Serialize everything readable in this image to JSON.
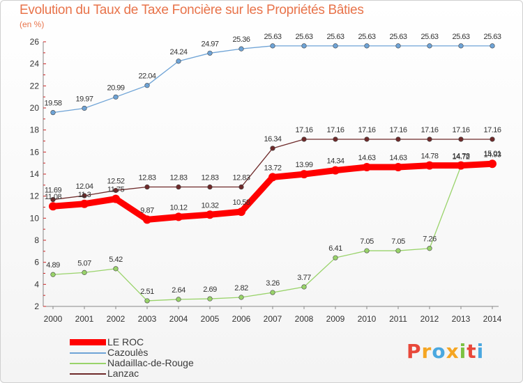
{
  "title": "Evolution du Taux de Taxe Foncière sur les Propriétés Bâties",
  "subtitle": "(en %)",
  "logo": "Proxiti",
  "chart_data": {
    "type": "line",
    "title": "Evolution du Taux de Taxe Foncière sur les Propriétés Bâties",
    "ylabel": "(en %)",
    "xlabel": "",
    "ylim": [
      2,
      26
    ],
    "yticks": [
      2,
      4,
      6,
      8,
      10,
      12,
      14,
      16,
      18,
      20,
      22,
      24,
      26
    ],
    "x": [
      "2000",
      "2001",
      "2002",
      "2003",
      "2004",
      "2005",
      "2006",
      "2007",
      "2008",
      "2009",
      "2010",
      "2011",
      "2012",
      "2013",
      "2014"
    ],
    "grid": false,
    "legend_position": "bottom-left",
    "series": [
      {
        "name": "LE ROC",
        "color": "#ff0000",
        "values": [
          11.08,
          11.3,
          11.75,
          9.87,
          10.12,
          10.32,
          10.58,
          13.72,
          13.99,
          14.34,
          14.63,
          14.63,
          14.78,
          14.78,
          14.93
        ],
        "labels": [
          "11.08",
          "11.3",
          "11.75",
          "9.87",
          "10.12",
          "10.32",
          "10.58",
          "13.72",
          "13.99",
          "14.34",
          "14.63",
          "14.63",
          "14.78",
          "14.78",
          "14.93"
        ]
      },
      {
        "name": "Cazoulès",
        "color": "#6ea3d6",
        "values": [
          19.58,
          19.97,
          20.99,
          22.04,
          24.24,
          24.97,
          25.36,
          25.63,
          25.63,
          25.63,
          25.63,
          25.63,
          25.63,
          25.63,
          25.63
        ],
        "labels": [
          "19.58",
          "19.97",
          "20.99",
          "22.04",
          "24.24",
          "24.97",
          "25.36",
          "25.63",
          "25.63",
          "25.63",
          "25.63",
          "25.63",
          "25.63",
          "25.63",
          "25.63"
        ]
      },
      {
        "name": "Nadaillac-de-Rouge",
        "color": "#99d36a",
        "values": [
          4.89,
          5.07,
          5.42,
          2.51,
          2.64,
          2.69,
          2.82,
          3.26,
          3.77,
          6.41,
          7.05,
          7.05,
          7.26,
          14.72,
          15.01
        ],
        "labels": [
          "4.89",
          "5.07",
          "5.42",
          "2.51",
          "2.64",
          "2.69",
          "2.82",
          "3.26",
          "3.77",
          "6.41",
          "7.05",
          "7.05",
          "7.26",
          "14.72",
          "15.01"
        ]
      },
      {
        "name": "Lanzac",
        "color": "#6e2a2a",
        "values": [
          11.69,
          12.04,
          12.52,
          12.83,
          12.83,
          12.83,
          12.83,
          16.34,
          17.16,
          17.16,
          17.16,
          17.16,
          17.16,
          17.16,
          17.16
        ],
        "labels": [
          "11.69",
          "12.04",
          "12.52",
          "12.83",
          "12.83",
          "12.83",
          "12.83",
          "16.34",
          "17.16",
          "17.16",
          "17.16",
          "17.16",
          "17.16",
          "17.16",
          "17.16"
        ]
      }
    ]
  }
}
